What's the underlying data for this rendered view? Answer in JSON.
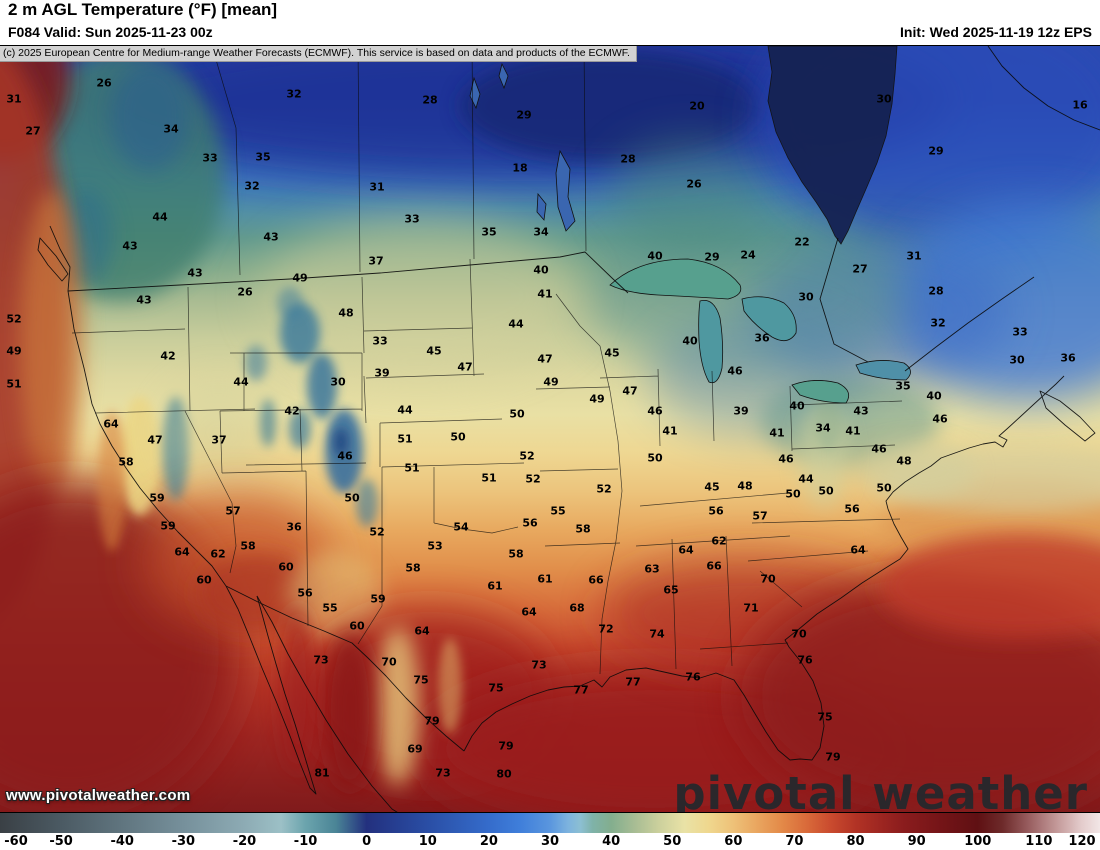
{
  "header": {
    "title": "2 m AGL Temperature (°F) [mean]",
    "valid": "F084 Valid: Sun 2025-11-23 00z",
    "init": "Init: Wed 2025-11-19 12z EPS"
  },
  "copyright": "(c) 2025 European Centre for Medium-range Weather Forecasts (ECMWF). This service is based on data and products of the ECMWF.",
  "watermark": {
    "url": "www.pivotalweather.com",
    "brand": "pivotal weather"
  },
  "colors": {
    "header_bg": "#ffffff",
    "copyright_bg": "#d2d2d2",
    "map_border": "#000000",
    "label_text": "#000000",
    "cold_extreme": "#23307e",
    "warm_extreme": "#7f1a1b"
  },
  "chart_data": {
    "type": "heatmap",
    "title": "2 m AGL Temperature (°F) [mean]",
    "units": "°F",
    "forecast_hour": "F084",
    "valid_time": "Sun 2025-11-23 00z",
    "init_time": "Wed 2025-11-19 12z",
    "ensemble": "EPS",
    "colorbar": {
      "min": -60,
      "max": 120,
      "ticks": [
        -60,
        -50,
        -40,
        -30,
        -20,
        -10,
        0,
        10,
        20,
        30,
        40,
        50,
        60,
        70,
        80,
        90,
        100,
        110,
        120
      ],
      "stops": [
        [
          -60,
          "#3a4045"
        ],
        [
          -50,
          "#4b5a63"
        ],
        [
          -40,
          "#60757f"
        ],
        [
          -30,
          "#76909b"
        ],
        [
          -20,
          "#8dabb4"
        ],
        [
          -14,
          "#9cc0c6"
        ],
        [
          -10,
          "#6ba4ad"
        ],
        [
          -5,
          "#4a8496"
        ],
        [
          0,
          "#23307e"
        ],
        [
          5,
          "#263f92"
        ],
        [
          10,
          "#2a4ea5"
        ],
        [
          15,
          "#2f5db8"
        ],
        [
          20,
          "#356ccb"
        ],
        [
          25,
          "#3f7eda"
        ],
        [
          30,
          "#5a96de"
        ],
        [
          33,
          "#7db3de"
        ],
        [
          35,
          "#8cbfd2"
        ],
        [
          37,
          "#7fb2a8"
        ],
        [
          40,
          "#83ae8e"
        ],
        [
          44,
          "#a9bd94"
        ],
        [
          48,
          "#cdd19d"
        ],
        [
          52,
          "#e9e2a6"
        ],
        [
          56,
          "#efd78e"
        ],
        [
          60,
          "#eec178"
        ],
        [
          64,
          "#e9a55f"
        ],
        [
          68,
          "#e38948"
        ],
        [
          72,
          "#d96a3a"
        ],
        [
          76,
          "#c94a2e"
        ],
        [
          80,
          "#b23325"
        ],
        [
          84,
          "#9e2621"
        ],
        [
          88,
          "#8a1c1d"
        ],
        [
          94,
          "#741417"
        ],
        [
          100,
          "#5f1013"
        ],
        [
          104,
          "#6d2a2a"
        ],
        [
          108,
          "#95595b"
        ],
        [
          113,
          "#c49a9a"
        ],
        [
          117,
          "#e4cccc"
        ],
        [
          120,
          "#f2e6e6"
        ]
      ]
    },
    "station_values": [
      [
        14,
        53,
        31
      ],
      [
        33,
        85,
        27
      ],
      [
        104,
        37,
        26
      ],
      [
        171,
        83,
        34
      ],
      [
        210,
        112,
        33
      ],
      [
        263,
        111,
        35
      ],
      [
        294,
        48,
        32
      ],
      [
        252,
        140,
        32
      ],
      [
        377,
        141,
        31
      ],
      [
        430,
        54,
        28
      ],
      [
        524,
        69,
        29
      ],
      [
        520,
        122,
        18
      ],
      [
        628,
        113,
        28
      ],
      [
        697,
        60,
        20
      ],
      [
        694,
        138,
        26
      ],
      [
        412,
        173,
        33
      ],
      [
        489,
        186,
        35
      ],
      [
        541,
        186,
        34
      ],
      [
        884,
        53,
        30
      ],
      [
        936,
        105,
        29
      ],
      [
        802,
        196,
        22
      ],
      [
        1080,
        59,
        16
      ],
      [
        860,
        223,
        27
      ],
      [
        806,
        251,
        30
      ],
      [
        936,
        245,
        28
      ],
      [
        914,
        210,
        31
      ],
      [
        160,
        171,
        44
      ],
      [
        130,
        200,
        43
      ],
      [
        271,
        191,
        43
      ],
      [
        195,
        227,
        43
      ],
      [
        300,
        232,
        49
      ],
      [
        376,
        215,
        37
      ],
      [
        541,
        224,
        40
      ],
      [
        545,
        248,
        41
      ],
      [
        655,
        210,
        40
      ],
      [
        712,
        211,
        29
      ],
      [
        748,
        209,
        24
      ],
      [
        245,
        246,
        26
      ],
      [
        144,
        254,
        43
      ],
      [
        346,
        267,
        48
      ],
      [
        14,
        273,
        52
      ],
      [
        14,
        305,
        49
      ],
      [
        14,
        338,
        51
      ],
      [
        168,
        310,
        42
      ],
      [
        111,
        378,
        64
      ],
      [
        126,
        416,
        58
      ],
      [
        155,
        394,
        47
      ],
      [
        219,
        394,
        37
      ],
      [
        157,
        452,
        59
      ],
      [
        233,
        465,
        57
      ],
      [
        168,
        480,
        59
      ],
      [
        182,
        506,
        64
      ],
      [
        218,
        508,
        62
      ],
      [
        248,
        500,
        58
      ],
      [
        204,
        534,
        60
      ],
      [
        286,
        521,
        60
      ],
      [
        305,
        547,
        56
      ],
      [
        294,
        481,
        36
      ],
      [
        241,
        336,
        44
      ],
      [
        292,
        365,
        42
      ],
      [
        338,
        336,
        30
      ],
      [
        382,
        327,
        39
      ],
      [
        380,
        295,
        33
      ],
      [
        405,
        364,
        44
      ],
      [
        345,
        410,
        46
      ],
      [
        405,
        393,
        51
      ],
      [
        412,
        422,
        51
      ],
      [
        352,
        452,
        50
      ],
      [
        377,
        486,
        52
      ],
      [
        434,
        305,
        45
      ],
      [
        465,
        321,
        47
      ],
      [
        516,
        278,
        44
      ],
      [
        458,
        391,
        50
      ],
      [
        517,
        368,
        50
      ],
      [
        527,
        410,
        52
      ],
      [
        489,
        432,
        51
      ],
      [
        533,
        433,
        52
      ],
      [
        604,
        443,
        52
      ],
      [
        545,
        313,
        47
      ],
      [
        551,
        336,
        49
      ],
      [
        597,
        353,
        49
      ],
      [
        612,
        307,
        45
      ],
      [
        630,
        345,
        47
      ],
      [
        655,
        365,
        46
      ],
      [
        655,
        412,
        50
      ],
      [
        690,
        295,
        40
      ],
      [
        735,
        325,
        46
      ],
      [
        741,
        365,
        39
      ],
      [
        762,
        292,
        36
      ],
      [
        670,
        385,
        41
      ],
      [
        797,
        360,
        40
      ],
      [
        823,
        382,
        34
      ],
      [
        853,
        385,
        41
      ],
      [
        861,
        365,
        43
      ],
      [
        903,
        340,
        35
      ],
      [
        934,
        350,
        40
      ],
      [
        940,
        373,
        46
      ],
      [
        879,
        403,
        46
      ],
      [
        904,
        415,
        48
      ],
      [
        884,
        442,
        50
      ],
      [
        938,
        277,
        32
      ],
      [
        1020,
        286,
        33
      ],
      [
        1017,
        314,
        30
      ],
      [
        1068,
        312,
        36
      ],
      [
        777,
        387,
        41
      ],
      [
        786,
        413,
        46
      ],
      [
        806,
        433,
        44
      ],
      [
        745,
        440,
        48
      ],
      [
        712,
        441,
        45
      ],
      [
        793,
        448,
        50
      ],
      [
        826,
        445,
        50
      ],
      [
        852,
        463,
        56
      ],
      [
        461,
        481,
        54
      ],
      [
        435,
        500,
        53
      ],
      [
        413,
        522,
        58
      ],
      [
        516,
        508,
        58
      ],
      [
        530,
        477,
        56
      ],
      [
        558,
        465,
        55
      ],
      [
        583,
        483,
        58
      ],
      [
        495,
        540,
        61
      ],
      [
        545,
        533,
        61
      ],
      [
        596,
        534,
        66
      ],
      [
        577,
        562,
        68
      ],
      [
        529,
        566,
        64
      ],
      [
        606,
        583,
        72
      ],
      [
        539,
        619,
        73
      ],
      [
        657,
        588,
        74
      ],
      [
        422,
        585,
        64
      ],
      [
        357,
        580,
        60
      ],
      [
        378,
        553,
        59
      ],
      [
        330,
        562,
        55
      ],
      [
        686,
        504,
        64
      ],
      [
        719,
        495,
        62
      ],
      [
        714,
        520,
        66
      ],
      [
        652,
        523,
        63
      ],
      [
        671,
        544,
        65
      ],
      [
        768,
        533,
        70
      ],
      [
        751,
        562,
        71
      ],
      [
        716,
        465,
        56
      ],
      [
        760,
        470,
        57
      ],
      [
        799,
        588,
        70
      ],
      [
        805,
        614,
        76
      ],
      [
        858,
        504,
        64
      ],
      [
        825,
        671,
        75
      ],
      [
        833,
        711,
        79
      ],
      [
        693,
        631,
        76
      ],
      [
        633,
        636,
        77
      ],
      [
        581,
        644,
        77
      ],
      [
        496,
        642,
        75
      ],
      [
        506,
        700,
        79
      ],
      [
        504,
        728,
        80
      ],
      [
        443,
        727,
        73
      ],
      [
        415,
        703,
        69
      ],
      [
        432,
        675,
        79
      ],
      [
        322,
        727,
        81
      ],
      [
        389,
        616,
        70
      ],
      [
        421,
        634,
        75
      ],
      [
        321,
        614,
        73
      ]
    ]
  }
}
